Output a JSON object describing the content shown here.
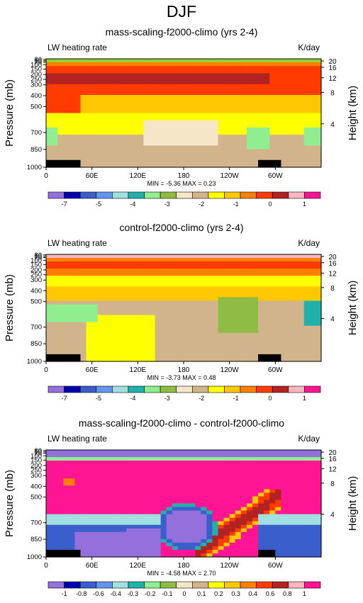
{
  "figure_title": "DJF",
  "chart_data": [
    {
      "type": "heatmap",
      "title": "mass-scaling-f2000-climo (yrs 2-4)",
      "variable_label": "LW heating rate",
      "units_label": "K/day",
      "ylabel": "Pressure (mb)",
      "ylabel_right": "Height (km)",
      "x_ticks": [
        "0",
        "60E",
        "120E",
        "180",
        "120W",
        "60W"
      ],
      "p_ticks": [
        "30",
        "50",
        "70",
        "100",
        "150",
        "200",
        "250",
        "300",
        "400",
        "500",
        "700",
        "850",
        "1000"
      ],
      "z_ticks": [
        "4",
        "8",
        "12",
        "16",
        "20"
      ],
      "stats": "MIN = -5.36   MAX =  0.23",
      "colorbar_labels": [
        "-7",
        "-5",
        "-4",
        "-3",
        "-2",
        "-1",
        "0",
        "1"
      ],
      "contour_levels": [
        -7,
        -6,
        -5,
        -4.5,
        -4,
        -3.5,
        -3,
        -2.5,
        -2,
        -1.5,
        -1,
        -0.5,
        0,
        0.5,
        1
      ],
      "colors": [
        "#9370db",
        "#0000b0",
        "#3a5fcd",
        "#6495ed",
        "#a0e0e0",
        "#20b2aa",
        "#90ee90",
        "#8fbc44",
        "#f5e6c8",
        "#d2b48c",
        "#ffff00",
        "#ffc800",
        "#ff7f00",
        "#ff3b00",
        "#b22222",
        "#ffb6c1",
        "#ff1493"
      ],
      "min": -5.36,
      "max": 0.23
    },
    {
      "type": "heatmap",
      "title": "control-f2000-climo (yrs 2-4)",
      "variable_label": "LW heating rate",
      "units_label": "K/day",
      "ylabel": "Pressure (mb)",
      "ylabel_right": "Height (km)",
      "x_ticks": [
        "0",
        "60E",
        "120E",
        "180",
        "120W",
        "60W"
      ],
      "p_ticks": [
        "30",
        "50",
        "70",
        "100",
        "150",
        "200",
        "250",
        "300",
        "400",
        "500",
        "700",
        "850",
        "1000"
      ],
      "z_ticks": [
        "4",
        "8",
        "12",
        "16",
        "20"
      ],
      "stats": "MIN = -3.73   MAX =  0.48",
      "colorbar_labels": [
        "-7",
        "-5",
        "-4",
        "-3",
        "-2",
        "-1",
        "0",
        "1"
      ],
      "contour_levels": [
        -7,
        -6,
        -5,
        -4.5,
        -4,
        -3.5,
        -3,
        -2.5,
        -2,
        -1.5,
        -1,
        -0.5,
        0,
        0.5,
        1
      ],
      "colors": [
        "#9370db",
        "#0000b0",
        "#3a5fcd",
        "#6495ed",
        "#a0e0e0",
        "#20b2aa",
        "#90ee90",
        "#8fbc44",
        "#f5e6c8",
        "#d2b48c",
        "#ffff00",
        "#ffc800",
        "#ff7f00",
        "#ff3b00",
        "#b22222",
        "#ffb6c1",
        "#ff1493"
      ],
      "min": -3.73,
      "max": 0.48
    },
    {
      "type": "heatmap",
      "title": "mass-scaling-f2000-climo - control-f2000-climo",
      "variable_label": "LW heating rate",
      "units_label": "K/day",
      "ylabel": "Pressure (mb)",
      "ylabel_right": "Height (km)",
      "x_ticks": [
        "0",
        "60E",
        "120E",
        "180",
        "120W",
        "60W"
      ],
      "p_ticks": [
        "30",
        "50",
        "70",
        "100",
        "150",
        "200",
        "250",
        "300",
        "400",
        "500",
        "700",
        "850",
        "1000"
      ],
      "z_ticks": [
        "4",
        "8",
        "12",
        "16",
        "20"
      ],
      "stats": "MIN = -4.58   MAX =  2.70",
      "colorbar_labels": [
        "-1",
        "-0.8",
        "-0.6",
        "-0.4",
        "-0.3",
        "-0.2",
        "-0.1",
        "0",
        "0.1",
        "0.2",
        "0.3",
        "0.4",
        "0.6",
        "0.8",
        "1"
      ],
      "contour_levels": [
        -1,
        -0.8,
        -0.6,
        -0.4,
        -0.3,
        -0.2,
        -0.1,
        0,
        0.1,
        0.2,
        0.3,
        0.4,
        0.6,
        0.8,
        1
      ],
      "colors": [
        "#9370db",
        "#0000b0",
        "#3a5fcd",
        "#6495ed",
        "#a0e0e0",
        "#20b2aa",
        "#90ee90",
        "#8fbc44",
        "#f5e6c8",
        "#d2b48c",
        "#ffff00",
        "#ffc800",
        "#ff7f00",
        "#ff3b00",
        "#b22222",
        "#ffb6c1",
        "#ff1493"
      ],
      "min": -4.58,
      "max": 2.7
    }
  ]
}
